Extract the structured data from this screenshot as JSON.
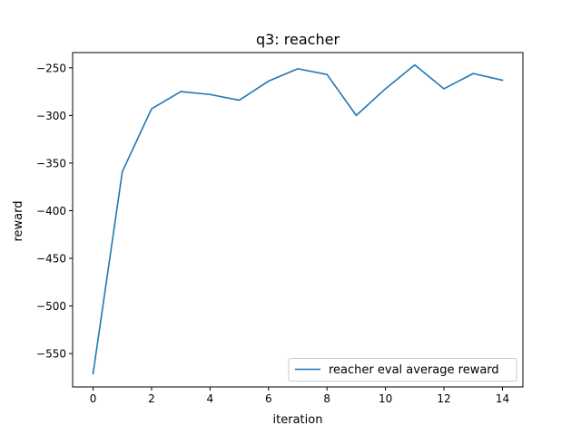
{
  "chart_data": {
    "type": "line",
    "title": "q3: reacher",
    "xlabel": "iteration",
    "ylabel": "reward",
    "xlim": [
      -0.7,
      14.7
    ],
    "ylim": [
      -585,
      -234
    ],
    "xticks": [
      0,
      2,
      4,
      6,
      8,
      10,
      12,
      14
    ],
    "xtick_labels": [
      "0",
      "2",
      "4",
      "6",
      "8",
      "10",
      "12",
      "14"
    ],
    "yticks": [
      -550,
      -500,
      -450,
      -400,
      -350,
      -300,
      -250
    ],
    "ytick_labels": [
      "−550",
      "−500",
      "−450",
      "−400",
      "−350",
      "−300",
      "−250"
    ],
    "grid": false,
    "legend_position": "lower-right",
    "series": [
      {
        "name": "reacher eval average reward",
        "color": "#1f77b4",
        "x": [
          0,
          1,
          2,
          3,
          4,
          5,
          6,
          7,
          8,
          9,
          10,
          11,
          12,
          13,
          14
        ],
        "y": [
          -571,
          -359,
          -293,
          -275,
          -278,
          -284,
          -264,
          -251,
          -257,
          -300,
          -272,
          -247,
          -272,
          -256,
          -263
        ]
      }
    ]
  }
}
